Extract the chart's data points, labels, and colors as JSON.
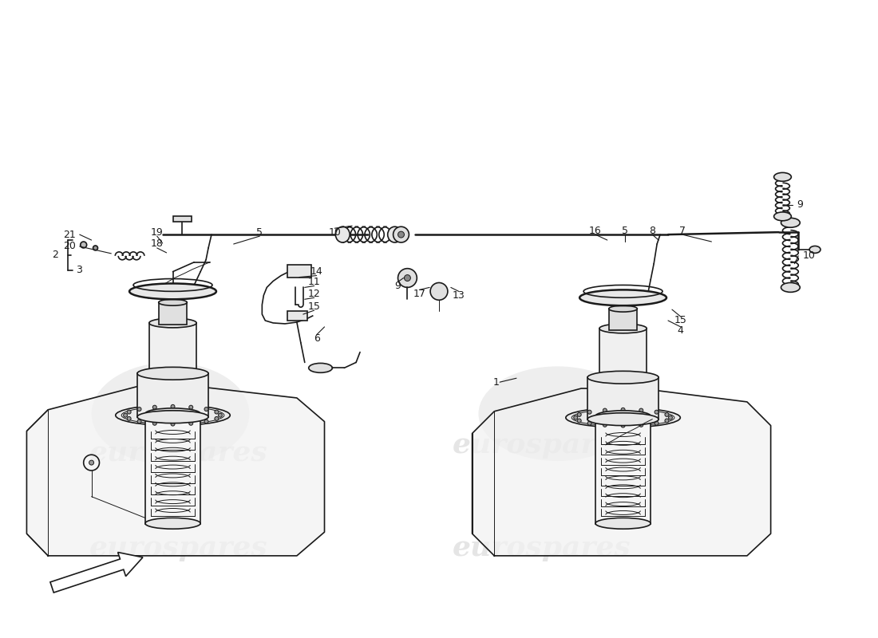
{
  "background_color": "#ffffff",
  "line_color": "#1a1a1a",
  "watermark_color": "#cccccc",
  "watermark_text": "eurospares",
  "label_fontsize": 9,
  "watermark_fontsize": 26
}
